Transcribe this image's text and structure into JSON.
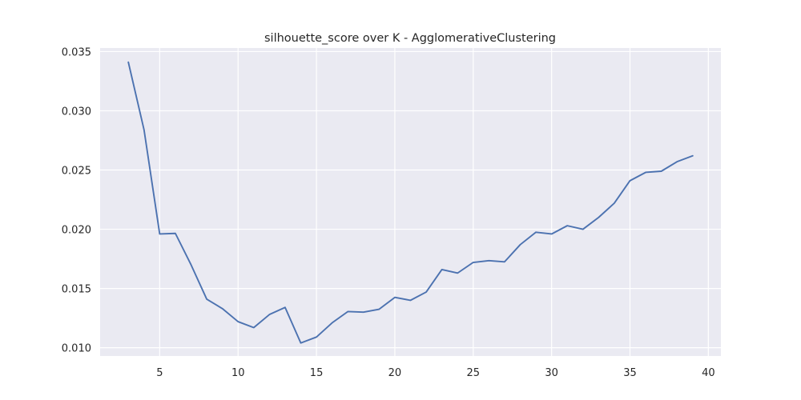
{
  "chart_data": {
    "type": "line",
    "title": "silhouette_score over K - AgglomerativeClustering",
    "xlabel": "",
    "ylabel": "",
    "xlim": [
      1.2,
      40.8
    ],
    "ylim": [
      0.0093,
      0.0353
    ],
    "xticks": [
      5,
      10,
      15,
      20,
      25,
      30,
      35,
      40
    ],
    "xtick_labels": [
      "5",
      "10",
      "15",
      "20",
      "25",
      "30",
      "35",
      "40"
    ],
    "yticks": [
      0.01,
      0.015,
      0.02,
      0.025,
      0.03,
      0.035
    ],
    "ytick_labels": [
      "0.010",
      "0.015",
      "0.020",
      "0.025",
      "0.030",
      "0.035"
    ],
    "grid": true,
    "background": "#eaeaf2",
    "grid_color": "#ffffff",
    "series": [
      {
        "color": "#4c72b0",
        "x": [
          3,
          4,
          5,
          6,
          7,
          8,
          9,
          10,
          11,
          12,
          13,
          14,
          15,
          16,
          17,
          18,
          19,
          20,
          21,
          22,
          23,
          24,
          25,
          26,
          27,
          28,
          29,
          30,
          31,
          32,
          33,
          34,
          35,
          36,
          37,
          38,
          39
        ],
        "values": [
          0.0341,
          0.0284,
          0.0196,
          0.01965,
          0.017,
          0.0141,
          0.0133,
          0.0122,
          0.0117,
          0.0128,
          0.0134,
          0.0104,
          0.0109,
          0.0121,
          0.01305,
          0.013,
          0.01325,
          0.01425,
          0.014,
          0.0147,
          0.0166,
          0.0163,
          0.0172,
          0.01735,
          0.01725,
          0.0187,
          0.01975,
          0.0196,
          0.0203,
          0.02,
          0.021,
          0.0222,
          0.0241,
          0.0248,
          0.0249,
          0.0257,
          0.0262
        ]
      }
    ]
  }
}
